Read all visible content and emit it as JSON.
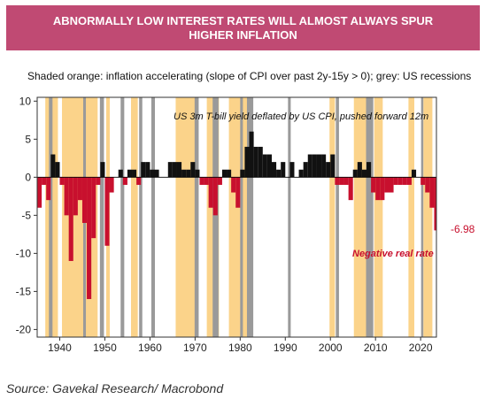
{
  "title": "ABNORMALLY LOW INTEREST RATES WILL ALMOST ALWAYS SPUR HIGHER INFLATION",
  "subtitle": "Shaded orange: inflation accelerating (slope of CPI over past 2y-15y > 0); grey: US recessions",
  "source": "Source: Gavekal Research/ Macrobond",
  "chart_data": {
    "type": "area",
    "series": [
      {
        "name": "US 3m T-bill yield deflated by US CPI, pushed forward 12m",
        "x": [
          1935,
          1936,
          1937,
          1938,
          1939,
          1940,
          1941,
          1942,
          1943,
          1944,
          1945,
          1946,
          1947,
          1948,
          1949,
          1950,
          1951,
          1952,
          1953,
          1954,
          1955,
          1956,
          1957,
          1958,
          1959,
          1960,
          1961,
          1962,
          1963,
          1964,
          1965,
          1966,
          1967,
          1968,
          1969,
          1970,
          1971,
          1972,
          1973,
          1974,
          1975,
          1976,
          1977,
          1978,
          1979,
          1980,
          1981,
          1982,
          1983,
          1984,
          1985,
          1986,
          1987,
          1988,
          1989,
          1990,
          1991,
          1992,
          1993,
          1994,
          1995,
          1996,
          1997,
          1998,
          1999,
          2000,
          2001,
          2002,
          2003,
          2004,
          2005,
          2006,
          2007,
          2008,
          2009,
          2010,
          2011,
          2012,
          2013,
          2014,
          2015,
          2016,
          2017,
          2018,
          2019,
          2020,
          2021,
          2022,
          2023
        ],
        "values": [
          -4,
          -1,
          -3,
          3,
          2,
          -1,
          -5,
          -11,
          -5,
          -3,
          -6,
          -16,
          -8,
          -1,
          2,
          -9,
          -2,
          0,
          1,
          -1,
          1,
          1,
          -1,
          2,
          2,
          1,
          1,
          0,
          0,
          2,
          2,
          2,
          1,
          1,
          2,
          1,
          -1,
          -1,
          -4,
          -5,
          -1,
          1,
          1,
          -2,
          -4,
          1,
          4,
          6,
          4,
          4,
          3,
          3,
          2,
          1,
          2,
          0,
          2,
          0,
          1,
          2,
          3,
          3,
          3,
          3,
          2,
          3,
          -1,
          -1,
          -1,
          -3,
          1,
          2,
          1,
          2,
          -2,
          -3,
          -3,
          -2,
          -2,
          -1,
          -1,
          -1,
          -1,
          1,
          0,
          -1,
          -2,
          -4,
          -6.98
        ]
      }
    ],
    "shaded_inflation_accelerating": [
      [
        1936.8,
        1939.6
      ],
      [
        1940.5,
        1948.4
      ],
      [
        1950.3,
        1951.1
      ],
      [
        1955.8,
        1957.3
      ],
      [
        1965.7,
        1970.6
      ],
      [
        1972.6,
        1975.3
      ],
      [
        1977.5,
        1982.3
      ],
      [
        1999.8,
        2001.0
      ],
      [
        2005.2,
        2008.8
      ],
      [
        2009.7,
        2011.6
      ],
      [
        2017.3,
        2018.6
      ],
      [
        2020.6,
        2022.6
      ]
    ],
    "recessions": [
      [
        1937.6,
        1938.4
      ],
      [
        1945.2,
        1945.8
      ],
      [
        1948.9,
        1949.8
      ],
      [
        1953.5,
        1954.3
      ],
      [
        1957.6,
        1958.3
      ],
      [
        1960.3,
        1961.1
      ],
      [
        1969.9,
        1970.8
      ],
      [
        1973.9,
        1975.2
      ],
      [
        1980.0,
        1980.6
      ],
      [
        1981.5,
        1982.9
      ],
      [
        1990.6,
        1991.2
      ],
      [
        2001.2,
        2001.9
      ],
      [
        2007.9,
        2009.5
      ],
      [
        2020.1,
        2020.4
      ]
    ],
    "last_value_label": "-6.98",
    "annotations": [
      "US 3m T-bill yield deflated by US CPI, pushed forward 12m",
      "Negative real rate"
    ],
    "xlim": [
      1935,
      2023.5
    ],
    "ylim": [
      -21,
      10.5
    ],
    "xticks": [
      1940,
      1950,
      1960,
      1970,
      1980,
      1990,
      2000,
      2010,
      2020
    ],
    "yticks": [
      10,
      5,
      0,
      -5,
      -10,
      -15,
      -20
    ],
    "colors": {
      "banner": "#c04a73",
      "positive": "#111111",
      "negative": "#c8102e",
      "inflation_shade": "#fbd38a",
      "recession": "#9a9a9a"
    }
  }
}
